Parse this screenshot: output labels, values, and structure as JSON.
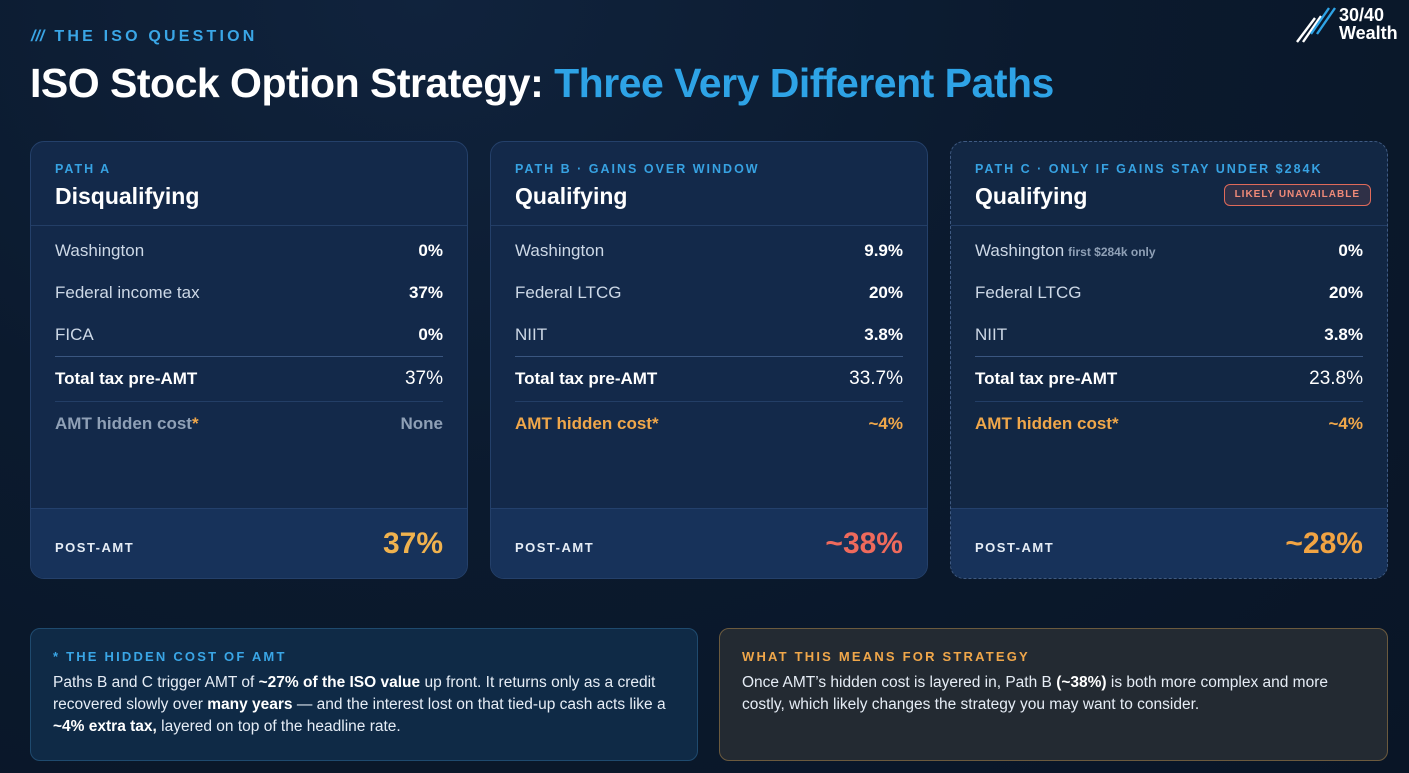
{
  "header": {
    "eyebrow_slashes": "///",
    "eyebrow": "THE ISO QUESTION",
    "title_main": "ISO Stock Option Strategy:",
    "title_accent": "Three Very Different Paths"
  },
  "logo": {
    "line1": "30/40",
    "line2": "Wealth",
    "icon": "rising-slashes-logo"
  },
  "cards": [
    {
      "label": "PATH A",
      "title": "Disqualifying",
      "rows": [
        {
          "label": "Washington",
          "value": "0%"
        },
        {
          "label": "Federal income tax",
          "value": "37%"
        },
        {
          "label": "FICA",
          "value": "0%"
        }
      ],
      "total_label": "Total tax pre-AMT",
      "total_value": "37%",
      "amt_label": "AMT hidden cost",
      "amt_star": "*",
      "amt_value": "None",
      "post_label": "POST-AMT",
      "post_value": "37%"
    },
    {
      "label": "PATH B · GAINS OVER WINDOW",
      "title": "Qualifying",
      "rows": [
        {
          "label": "Washington",
          "value": "9.9%"
        },
        {
          "label": "Federal LTCG",
          "value": "20%"
        },
        {
          "label": "NIIT",
          "value": "3.8%"
        }
      ],
      "total_label": "Total tax pre-AMT",
      "total_value": "33.7%",
      "amt_label": "AMT hidden cost*",
      "amt_value": "~4%",
      "post_label": "POST-AMT",
      "post_value": "~38%"
    },
    {
      "label": "PATH C · ONLY IF GAINS STAY UNDER $284K",
      "title": "Qualifying",
      "badge": "LIKELY UNAVAILABLE",
      "rows": [
        {
          "label": "Washington",
          "sub": "first $284k only",
          "value": "0%"
        },
        {
          "label": "Federal LTCG",
          "value": "20%"
        },
        {
          "label": "NIIT",
          "value": "3.8%"
        }
      ],
      "total_label": "Total tax pre-AMT",
      "total_value": "23.8%",
      "amt_label": "AMT hidden cost*",
      "amt_value": "~4%",
      "post_label": "POST-AMT",
      "post_value": "~28%"
    }
  ],
  "amt_box": {
    "label": "* THE HIDDEN COST OF AMT",
    "t1": "Paths B and C trigger AMT of ",
    "b1": "~27% of the ISO value",
    "t2": " up front. It returns only as a credit recovered slowly over ",
    "b2": "many years",
    "t3": " — and the interest lost on that tied-up cash acts like a ",
    "b3": "~4% extra tax,",
    "t4": " layered on top of the headline rate."
  },
  "strategy_box": {
    "label": "WHAT THIS MEANS FOR STRATEGY",
    "t1": "Once AMT’s hidden cost is layered in, Path B ",
    "b1": "(~38%)",
    "t2": " is both more complex and more costly, which likely changes the strategy you may want to consider."
  },
  "colors": {
    "accent_blue": "#2ea3e6",
    "gold": "#f0b24e",
    "red": "#ef6a5c",
    "orange": "#f0a74a"
  }
}
